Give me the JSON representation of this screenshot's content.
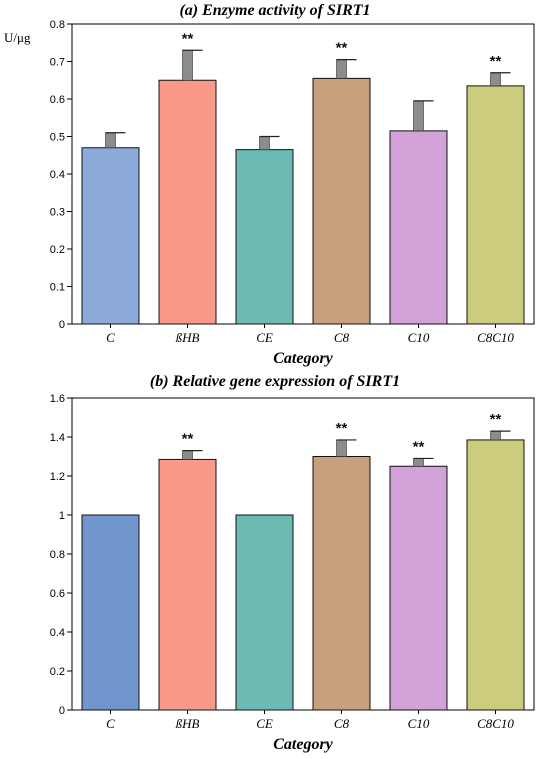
{
  "chart_data": [
    {
      "type": "bar",
      "title": "(a) Enzyme activity of SIRT1",
      "ylabel": "U/μg",
      "xlabel": "Category",
      "categories": [
        "C",
        "ßHB",
        "CE",
        "C8",
        "C10",
        "C8C10"
      ],
      "values": [
        0.47,
        0.65,
        0.465,
        0.655,
        0.515,
        0.635
      ],
      "errors": [
        0.04,
        0.08,
        0.035,
        0.05,
        0.08,
        0.035
      ],
      "significance": [
        "",
        "**",
        "",
        "**",
        "",
        "**"
      ],
      "colors": [
        "#8eaadb",
        "#f9998a",
        "#6cbab4",
        "#c9a07c",
        "#d2a2d9",
        "#cbcc7c"
      ],
      "ylim": [
        0,
        0.8
      ],
      "yticks": [
        "0",
        "0.1",
        "0.2",
        "0.3",
        "0.4",
        "0.5",
        "0.6",
        "0.7",
        "0.8"
      ],
      "grid": false
    },
    {
      "type": "bar",
      "title": "(b) Relative gene expression of SIRT1",
      "ylabel": "",
      "xlabel": "Category",
      "categories": [
        "C",
        "ßHB",
        "CE",
        "C8",
        "C10",
        "C8C10"
      ],
      "values": [
        1.0,
        1.285,
        1.0,
        1.3,
        1.25,
        1.385
      ],
      "errors": [
        0,
        0.045,
        0,
        0.085,
        0.04,
        0.045
      ],
      "significance": [
        "",
        "**",
        "",
        "**",
        "**",
        "**"
      ],
      "colors": [
        "#7196ce",
        "#f9998a",
        "#6cbab4",
        "#c9a07c",
        "#d2a2d9",
        "#cbcc7c"
      ],
      "ylim": [
        0,
        1.6
      ],
      "yticks": [
        "0",
        "0.2",
        "0.4",
        "0.6",
        "0.8",
        "1",
        "1.2",
        "1.4",
        "1.6"
      ],
      "grid": false
    }
  ]
}
